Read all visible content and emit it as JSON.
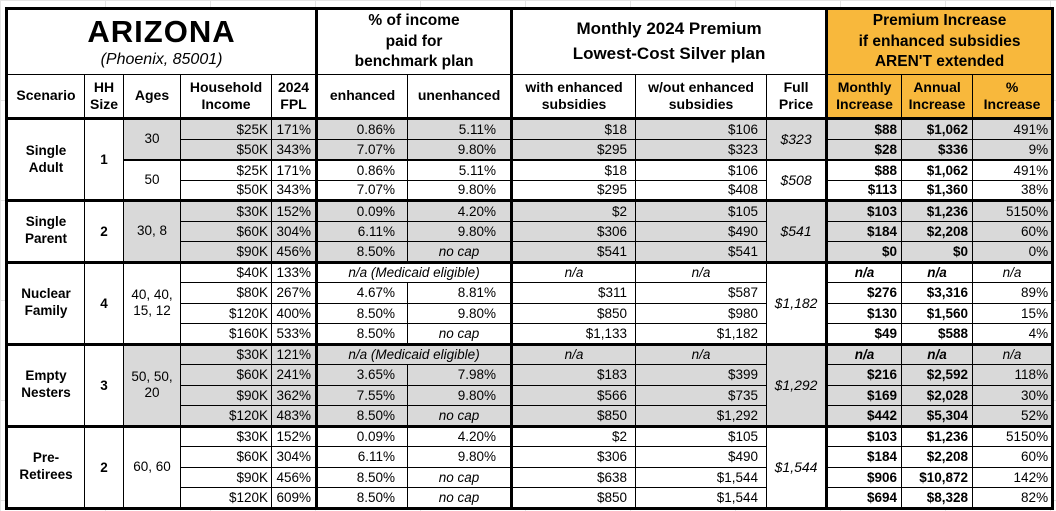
{
  "colors": {
    "accent_orange": "#F8B83C",
    "shade_gray": "#D9D9D9",
    "border": "#000000"
  },
  "chart_data": {
    "type": "table",
    "title": {
      "state": "ARIZONA",
      "location": "(Phoenix, 85001)"
    },
    "header_groups": {
      "benchmark_label": "% of income\npaid for\nbenchmark plan",
      "premium_label": "Monthly 2024 Premium\nLowest-Cost Silver plan",
      "increase_label": "Premium Increase\nif enhanced subsidies\nAREN'T extended"
    },
    "columns": {
      "scenario": "Scenario",
      "hh_size": "HH\nSize",
      "ages": "Ages",
      "household_income": "Household\nIncome",
      "fpl": "2024\nFPL",
      "enhanced": "enhanced",
      "unenhanced": "unenhanced",
      "with_subsidies": "with enhanced\nsubsidies",
      "without_subsidies": "w/out enhanced\nsubsidies",
      "full_price": "Full\nPrice",
      "monthly_increase": "Monthly\nIncrease",
      "annual_increase": "Annual\nIncrease",
      "pct_increase": "%\nIncrease"
    },
    "special_values": {
      "no_cap": "no cap",
      "na": "n/a",
      "medicaid": "n/a (Medicaid eligible)"
    },
    "groups": [
      {
        "scenario": "Single Adult",
        "hh_size": "1",
        "subgroups": [
          {
            "ages": "30",
            "shaded": true,
            "full_price": "$323",
            "rows": [
              {
                "income": "$25K",
                "fpl": "171%",
                "enhanced": "0.86%",
                "unenhanced": "5.11%",
                "with_sub": "$18",
                "without_sub": "$106",
                "monthly": "$88",
                "annual": "$1,062",
                "pct": "491%"
              },
              {
                "income": "$50K",
                "fpl": "343%",
                "enhanced": "7.07%",
                "unenhanced": "9.80%",
                "with_sub": "$295",
                "without_sub": "$323",
                "monthly": "$28",
                "annual": "$336",
                "pct": "9%"
              }
            ]
          },
          {
            "ages": "50",
            "shaded": false,
            "full_price": "$508",
            "rows": [
              {
                "income": "$25K",
                "fpl": "171%",
                "enhanced": "0.86%",
                "unenhanced": "5.11%",
                "with_sub": "$18",
                "without_sub": "$106",
                "monthly": "$88",
                "annual": "$1,062",
                "pct": "491%"
              },
              {
                "income": "$50K",
                "fpl": "343%",
                "enhanced": "7.07%",
                "unenhanced": "9.80%",
                "with_sub": "$295",
                "without_sub": "$408",
                "monthly": "$113",
                "annual": "$1,360",
                "pct": "38%"
              }
            ]
          }
        ]
      },
      {
        "scenario": "Single Parent",
        "hh_size": "2",
        "subgroups": [
          {
            "ages": "30, 8",
            "shaded": true,
            "full_price": "$541",
            "rows": [
              {
                "income": "$30K",
                "fpl": "152%",
                "enhanced": "0.09%",
                "unenhanced": "4.20%",
                "with_sub": "$2",
                "without_sub": "$105",
                "monthly": "$103",
                "annual": "$1,236",
                "pct": "5150%"
              },
              {
                "income": "$60K",
                "fpl": "304%",
                "enhanced": "6.11%",
                "unenhanced": "9.80%",
                "with_sub": "$306",
                "without_sub": "$490",
                "monthly": "$184",
                "annual": "$2,208",
                "pct": "60%"
              },
              {
                "income": "$90K",
                "fpl": "456%",
                "enhanced": "8.50%",
                "unenhanced": "no cap",
                "with_sub": "$541",
                "without_sub": "$541",
                "monthly": "$0",
                "annual": "$0",
                "pct": "0%"
              }
            ]
          }
        ]
      },
      {
        "scenario": "Nuclear Family",
        "hh_size": "4",
        "subgroups": [
          {
            "ages": "40, 40,\n15, 12",
            "shaded": false,
            "full_price": "$1,182",
            "rows": [
              {
                "income": "$40K",
                "fpl": "133%",
                "medicaid": true
              },
              {
                "income": "$80K",
                "fpl": "267%",
                "enhanced": "4.67%",
                "unenhanced": "8.81%",
                "with_sub": "$311",
                "without_sub": "$587",
                "monthly": "$276",
                "annual": "$3,316",
                "pct": "89%"
              },
              {
                "income": "$120K",
                "fpl": "400%",
                "enhanced": "8.50%",
                "unenhanced": "9.80%",
                "with_sub": "$850",
                "without_sub": "$980",
                "monthly": "$130",
                "annual": "$1,560",
                "pct": "15%"
              },
              {
                "income": "$160K",
                "fpl": "533%",
                "enhanced": "8.50%",
                "unenhanced": "no cap",
                "with_sub": "$1,133",
                "without_sub": "$1,182",
                "monthly": "$49",
                "annual": "$588",
                "pct": "4%"
              }
            ]
          }
        ]
      },
      {
        "scenario": "Empty Nesters",
        "hh_size": "3",
        "subgroups": [
          {
            "ages": "50, 50,\n20",
            "shaded": true,
            "full_price": "$1,292",
            "rows": [
              {
                "income": "$30K",
                "fpl": "121%",
                "medicaid": true
              },
              {
                "income": "$60K",
                "fpl": "241%",
                "enhanced": "3.65%",
                "unenhanced": "7.98%",
                "with_sub": "$183",
                "without_sub": "$399",
                "monthly": "$216",
                "annual": "$2,592",
                "pct": "118%"
              },
              {
                "income": "$90K",
                "fpl": "362%",
                "enhanced": "7.55%",
                "unenhanced": "9.80%",
                "with_sub": "$566",
                "without_sub": "$735",
                "monthly": "$169",
                "annual": "$2,028",
                "pct": "30%"
              },
              {
                "income": "$120K",
                "fpl": "483%",
                "enhanced": "8.50%",
                "unenhanced": "no cap",
                "with_sub": "$850",
                "without_sub": "$1,292",
                "monthly": "$442",
                "annual": "$5,304",
                "pct": "52%"
              }
            ]
          }
        ]
      },
      {
        "scenario": "Pre-Retirees",
        "hh_size": "2",
        "subgroups": [
          {
            "ages": "60, 60",
            "shaded": false,
            "full_price": "$1,544",
            "rows": [
              {
                "income": "$30K",
                "fpl": "152%",
                "enhanced": "0.09%",
                "unenhanced": "4.20%",
                "with_sub": "$2",
                "without_sub": "$105",
                "monthly": "$103",
                "annual": "$1,236",
                "pct": "5150%"
              },
              {
                "income": "$60K",
                "fpl": "304%",
                "enhanced": "6.11%",
                "unenhanced": "9.80%",
                "with_sub": "$306",
                "without_sub": "$490",
                "monthly": "$184",
                "annual": "$2,208",
                "pct": "60%"
              },
              {
                "income": "$90K",
                "fpl": "456%",
                "enhanced": "8.50%",
                "unenhanced": "no cap",
                "with_sub": "$638",
                "without_sub": "$1,544",
                "monthly": "$906",
                "annual": "$10,872",
                "pct": "142%"
              },
              {
                "income": "$120K",
                "fpl": "609%",
                "enhanced": "8.50%",
                "unenhanced": "no cap",
                "with_sub": "$850",
                "without_sub": "$1,544",
                "monthly": "$694",
                "annual": "$8,328",
                "pct": "82%"
              }
            ]
          }
        ]
      }
    ]
  }
}
